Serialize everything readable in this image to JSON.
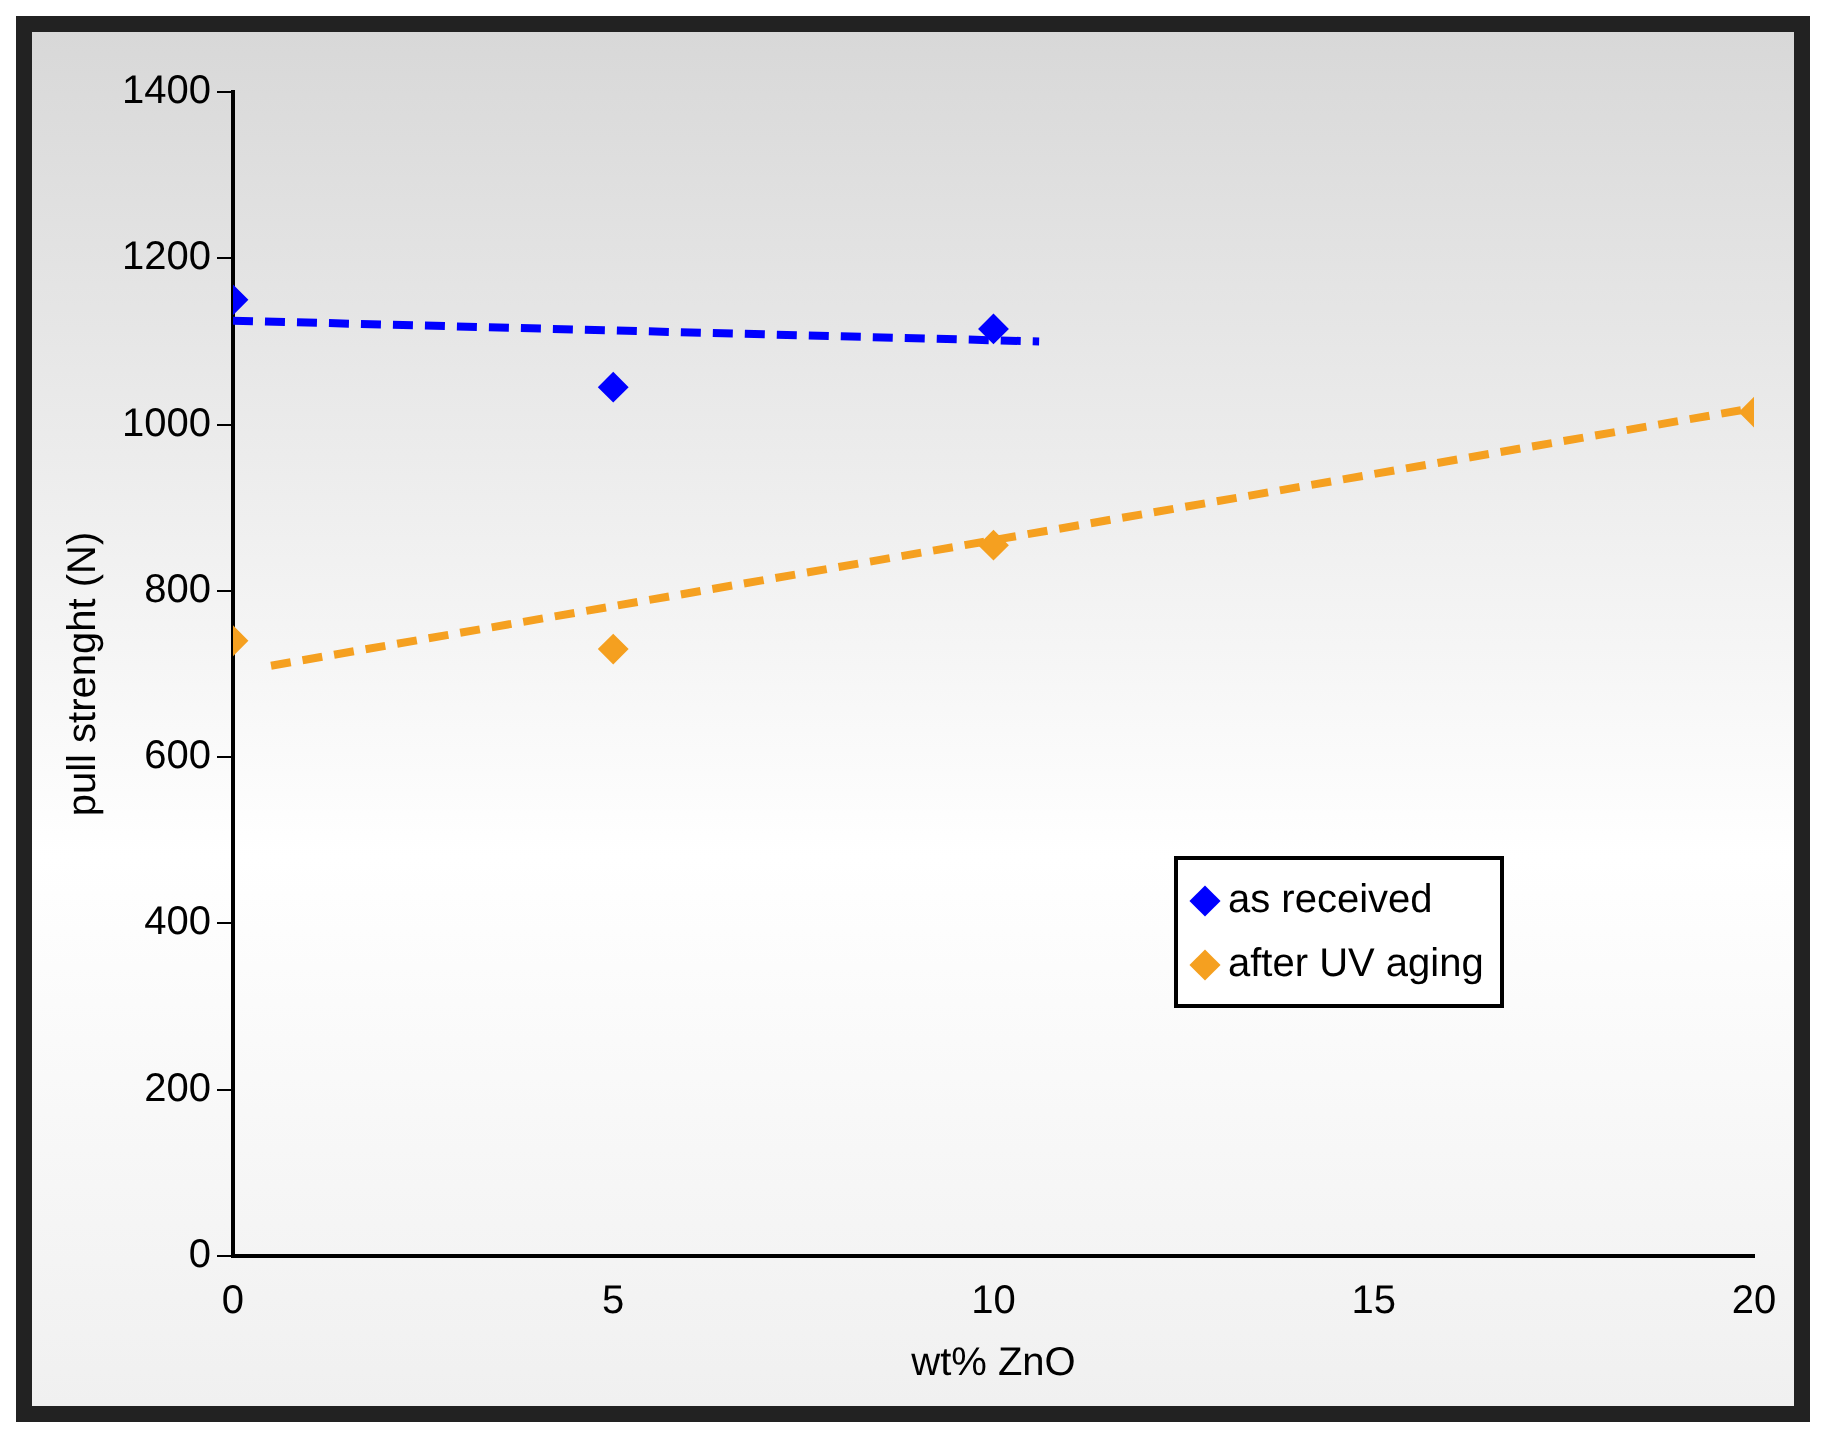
{
  "chart_data": {
    "type": "scatter",
    "xlabel": "wt% ZnO",
    "ylabel": "pull strenght (N)",
    "series": [
      {
        "name": "as received",
        "color": "#0000ff",
        "x": [
          0,
          5,
          10
        ],
        "values": [
          1150,
          1045,
          1115
        ]
      },
      {
        "name": "after UV aging",
        "color": "#f5a020",
        "x": [
          0,
          5,
          10,
          20
        ],
        "values": [
          740,
          730,
          855,
          1015
        ]
      },
      {
        "type": "line",
        "color": "#0000ff",
        "x": [
          0,
          10.6
        ],
        "values": [
          1125,
          1100
        ],
        "line_style": "dashed",
        "marker": "none"
      },
      {
        "type": "line",
        "color": "#f5a020",
        "x": [
          0.5,
          20
        ],
        "values": [
          710,
          1020
        ],
        "line_style": "dashed",
        "marker": "none"
      }
    ],
    "xlim": [
      0,
      20
    ],
    "xticks": [
      0,
      5,
      10,
      15,
      20
    ],
    "ylim": [
      0,
      1400
    ],
    "yticks": [
      0,
      200,
      400,
      600,
      800,
      1000,
      1200,
      1400
    ],
    "grid": false,
    "legend": "bottom right",
    "marker": "diamond"
  }
}
